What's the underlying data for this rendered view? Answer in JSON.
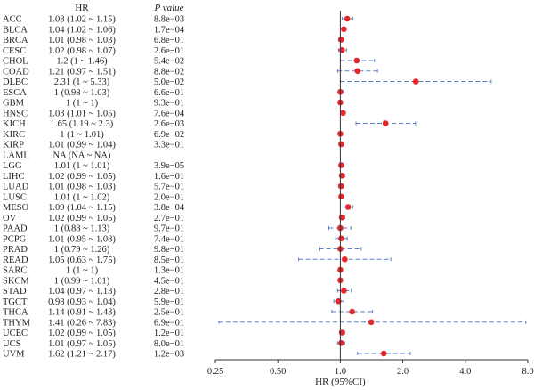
{
  "chart_data": {
    "type": "forest",
    "columns": {
      "hr": "HR",
      "p": "P value"
    },
    "xlabel": "HR (95%CI)",
    "xscale": "log2",
    "xlim": [
      0.25,
      8.0
    ],
    "xticks": [
      "0.25",
      "0.50",
      "1.0",
      "2.0",
      "4.0",
      "8.0"
    ],
    "reference_line": 1.0,
    "colors": {
      "point": "#e8272a",
      "ci": "#5b7fc9",
      "ref": "#333333"
    },
    "rows": [
      {
        "label": "ACC",
        "hr_text": "1.08 (1.02 ~ 1.15)",
        "p": "8.8e−03",
        "hr": 1.08,
        "lo": 1.02,
        "hi": 1.15
      },
      {
        "label": "BLCA",
        "hr_text": "1.04 (1.02 ~ 1.06)",
        "p": "1.7e−04",
        "hr": 1.04,
        "lo": 1.02,
        "hi": 1.06
      },
      {
        "label": "BRCA",
        "hr_text": "1.01 (0.98 ~ 1.03)",
        "p": "6.8e−01",
        "hr": 1.01,
        "lo": 0.98,
        "hi": 1.03
      },
      {
        "label": "CESC",
        "hr_text": "1.02 (0.98 ~ 1.07)",
        "p": "2.6e−01",
        "hr": 1.02,
        "lo": 0.98,
        "hi": 1.07
      },
      {
        "label": "CHOL",
        "hr_text": "1.2 (1 ~ 1.46)",
        "p": "5.4e−02",
        "hr": 1.2,
        "lo": 1.0,
        "hi": 1.46
      },
      {
        "label": "COAD",
        "hr_text": "1.21 (0.97 ~ 1.51)",
        "p": "8.8e−02",
        "hr": 1.21,
        "lo": 0.97,
        "hi": 1.51
      },
      {
        "label": "DLBC",
        "hr_text": "2.31 (1 ~ 5.33)",
        "p": "5.0e−02",
        "hr": 2.31,
        "lo": 1.0,
        "hi": 5.33
      },
      {
        "label": "ESCA",
        "hr_text": "1 (0.98 ~ 1.03)",
        "p": "6.6e−01",
        "hr": 1.0,
        "lo": 0.98,
        "hi": 1.03
      },
      {
        "label": "GBM",
        "hr_text": "1 (1 ~ 1)",
        "p": "9.3e−01",
        "hr": 1.0,
        "lo": 1.0,
        "hi": 1.0
      },
      {
        "label": "HNSC",
        "hr_text": "1.03 (1.01 ~ 1.05)",
        "p": "7.6e−04",
        "hr": 1.03,
        "lo": 1.01,
        "hi": 1.05
      },
      {
        "label": "KICH",
        "hr_text": "1.65 (1.19 ~ 2.3)",
        "p": "2.6e−03",
        "hr": 1.65,
        "lo": 1.19,
        "hi": 2.3
      },
      {
        "label": "KIRC",
        "hr_text": "1 (1 ~ 1.01)",
        "p": "6.9e−02",
        "hr": 1.0,
        "lo": 1.0,
        "hi": 1.01
      },
      {
        "label": "KIRP",
        "hr_text": "1.01 (0.99 ~ 1.04)",
        "p": "3.3e−01",
        "hr": 1.01,
        "lo": 0.99,
        "hi": 1.04
      },
      {
        "label": "LAML",
        "hr_text": "NA (NA ~ NA)",
        "p": "",
        "hr": null,
        "lo": null,
        "hi": null
      },
      {
        "label": "LGG",
        "hr_text": "1.01 (1 ~ 1.01)",
        "p": "3.9e−05",
        "hr": 1.01,
        "lo": 1.0,
        "hi": 1.01
      },
      {
        "label": "LIHC",
        "hr_text": "1.02 (0.99 ~ 1.05)",
        "p": "1.6e−01",
        "hr": 1.02,
        "lo": 0.99,
        "hi": 1.05
      },
      {
        "label": "LUAD",
        "hr_text": "1.01 (0.98 ~ 1.03)",
        "p": "5.7e−01",
        "hr": 1.01,
        "lo": 0.98,
        "hi": 1.03
      },
      {
        "label": "LUSC",
        "hr_text": "1.01 (1 ~ 1.02)",
        "p": "2.0e−01",
        "hr": 1.01,
        "lo": 1.0,
        "hi": 1.02
      },
      {
        "label": "MESO",
        "hr_text": "1.09 (1.04 ~ 1.15)",
        "p": "3.8e−04",
        "hr": 1.09,
        "lo": 1.04,
        "hi": 1.15
      },
      {
        "label": "OV",
        "hr_text": "1.02 (0.99 ~ 1.05)",
        "p": "2.7e−01",
        "hr": 1.02,
        "lo": 0.99,
        "hi": 1.05
      },
      {
        "label": "PAAD",
        "hr_text": "1 (0.88 ~ 1.13)",
        "p": "9.7e−01",
        "hr": 1.0,
        "lo": 0.88,
        "hi": 1.13
      },
      {
        "label": "PCPG",
        "hr_text": "1.01 (0.95 ~ 1.08)",
        "p": "7.4e−01",
        "hr": 1.01,
        "lo": 0.95,
        "hi": 1.08
      },
      {
        "label": "PRAD",
        "hr_text": "1 (0.79 ~ 1.26)",
        "p": "9.8e−01",
        "hr": 1.0,
        "lo": 0.79,
        "hi": 1.26
      },
      {
        "label": "READ",
        "hr_text": "1.05 (0.63 ~ 1.75)",
        "p": "8.5e−01",
        "hr": 1.05,
        "lo": 0.63,
        "hi": 1.75
      },
      {
        "label": "SARC",
        "hr_text": "1 (1 ~ 1)",
        "p": "1.3e−01",
        "hr": 1.0,
        "lo": 1.0,
        "hi": 1.0
      },
      {
        "label": "SKCM",
        "hr_text": "1 (0.99 ~ 1.01)",
        "p": "4.5e−01",
        "hr": 1.0,
        "lo": 0.99,
        "hi": 1.01
      },
      {
        "label": "STAD",
        "hr_text": "1.04 (0.97 ~ 1.13)",
        "p": "2.8e−01",
        "hr": 1.04,
        "lo": 0.97,
        "hi": 1.13
      },
      {
        "label": "TGCT",
        "hr_text": "0.98 (0.93 ~ 1.04)",
        "p": "5.9e−01",
        "hr": 0.98,
        "lo": 0.93,
        "hi": 1.04
      },
      {
        "label": "THCA",
        "hr_text": "1.14 (0.91 ~ 1.43)",
        "p": "2.5e−01",
        "hr": 1.14,
        "lo": 0.91,
        "hi": 1.43
      },
      {
        "label": "THYM",
        "hr_text": "1.41 (0.26 ~ 7.83)",
        "p": "6.9e−01",
        "hr": 1.41,
        "lo": 0.26,
        "hi": 7.83
      },
      {
        "label": "UCEC",
        "hr_text": "1.02 (0.99 ~ 1.05)",
        "p": "1.2e−01",
        "hr": 1.02,
        "lo": 0.99,
        "hi": 1.05
      },
      {
        "label": "UCS",
        "hr_text": "1.01 (0.97 ~ 1.05)",
        "p": "8.0e−01",
        "hr": 1.01,
        "lo": 0.97,
        "hi": 1.05
      },
      {
        "label": "UVM",
        "hr_text": "1.62 (1.21 ~ 2.17)",
        "p": "1.2e−03",
        "hr": 1.62,
        "lo": 1.21,
        "hi": 2.17
      }
    ]
  }
}
